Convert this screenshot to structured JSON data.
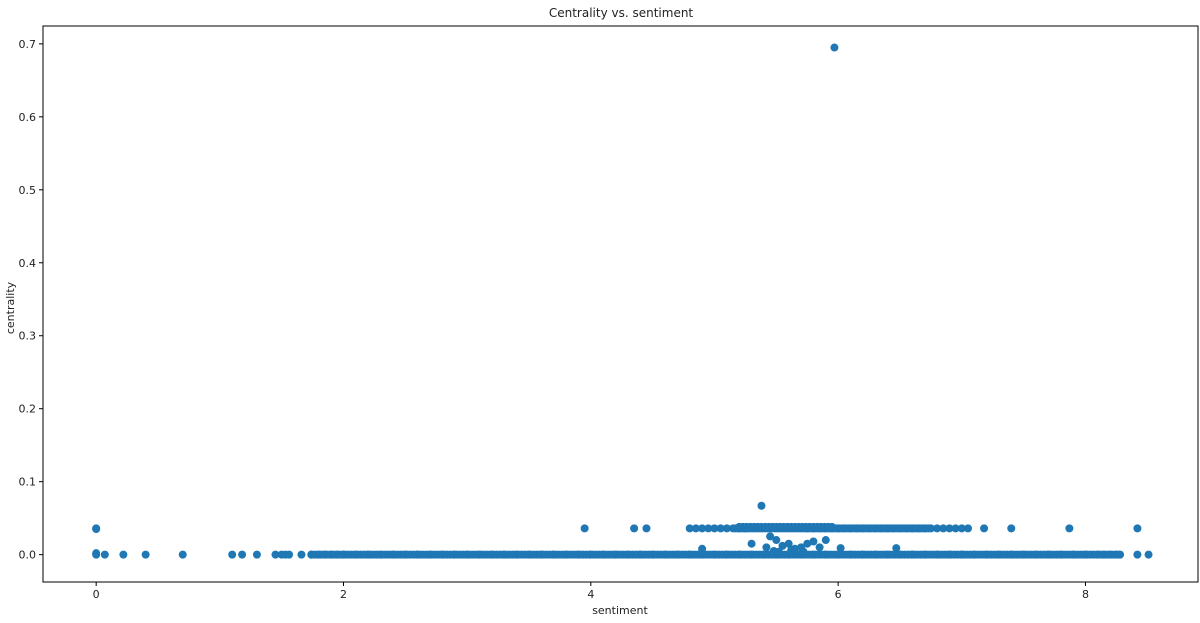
{
  "chart_data": {
    "type": "scatter",
    "title": "Centrality vs. sentiment",
    "xlabel": "sentiment",
    "ylabel": "centrality",
    "xlim": [
      -0.43,
      8.91
    ],
    "ylim": [
      -0.0375,
      0.7245
    ],
    "xticks": [
      0,
      2,
      4,
      6,
      8
    ],
    "yticks": [
      0.0,
      0.1,
      0.2,
      0.3,
      0.4,
      0.5,
      0.6,
      0.7
    ],
    "xtick_labels": [
      "0",
      "2",
      "4",
      "6",
      "8"
    ],
    "ytick_labels": [
      "0.0",
      "0.1",
      "0.2",
      "0.3",
      "0.4",
      "0.5",
      "0.6",
      "0.7"
    ],
    "grid": false,
    "legend": "none",
    "marker_color": "#1f77b4",
    "series": [
      {
        "x": [
          0.0,
          0.0,
          0.0,
          0.0,
          0.07,
          0.22,
          0.4,
          0.7,
          1.1,
          1.18,
          1.3,
          1.45,
          1.5,
          1.53,
          1.56,
          1.66,
          1.74,
          1.8,
          1.85,
          1.9,
          1.95,
          2.0,
          2.1,
          2.2,
          2.3,
          2.4,
          2.5,
          2.6,
          2.7,
          2.8,
          2.9,
          3.0,
          3.1,
          3.2,
          3.3,
          3.4,
          3.5,
          3.6,
          3.7,
          3.8,
          3.9,
          4.0,
          4.1,
          4.2,
          4.3,
          4.4,
          4.5,
          4.6,
          4.7,
          4.8,
          4.9,
          5.0,
          5.1,
          5.2,
          5.3,
          5.4,
          5.5,
          5.6,
          5.7,
          5.8,
          5.9,
          6.0,
          6.1,
          6.2,
          6.3,
          6.4,
          6.5,
          6.6,
          6.7,
          6.8,
          6.9,
          7.0,
          7.1,
          7.2,
          7.3,
          7.4,
          7.5,
          7.6,
          7.7,
          7.8,
          7.9,
          8.0,
          8.1,
          8.15,
          8.2,
          8.25,
          8.28,
          8.42,
          8.51,
          3.95,
          4.35,
          4.45,
          4.8,
          4.85,
          4.9,
          4.95,
          5.0,
          5.05,
          5.1,
          5.2,
          5.25,
          5.3,
          5.35,
          5.4,
          5.45,
          5.5,
          5.55,
          5.6,
          5.65,
          5.7,
          5.75,
          5.8,
          5.85,
          5.9,
          5.95,
          6.0,
          6.05,
          6.1,
          6.15,
          6.2,
          6.25,
          6.3,
          6.35,
          6.4,
          6.45,
          6.5,
          6.55,
          6.6,
          6.65,
          6.7,
          6.8,
          6.85,
          6.9,
          6.95,
          7.0,
          7.05,
          7.18,
          7.4,
          7.87,
          8.42,
          5.38,
          5.97,
          4.9,
          5.3,
          5.42,
          5.45,
          5.5,
          5.55,
          5.6,
          5.65,
          5.7,
          5.75,
          5.8,
          5.85,
          5.9,
          6.02,
          6.47,
          5.48,
          5.52,
          5.62,
          5.72
        ],
        "y": [
          0.036,
          0.035,
          0.002,
          0.0,
          0.0,
          0.0,
          0.0,
          0.0,
          0.0,
          0.0,
          0.0,
          0.0,
          0.0,
          0.0,
          0.0,
          0.0,
          0.0,
          0.0,
          0.0,
          0.0,
          0.0,
          0.0,
          0.0,
          0.0,
          0.0,
          0.0,
          0.0,
          0.0,
          0.0,
          0.0,
          0.0,
          0.0,
          0.0,
          0.0,
          0.0,
          0.0,
          0.0,
          0.0,
          0.0,
          0.0,
          0.0,
          0.0,
          0.0,
          0.0,
          0.0,
          0.0,
          0.0,
          0.0,
          0.0,
          0.0,
          0.0,
          0.0,
          0.0,
          0.0,
          0.0,
          0.0,
          0.0,
          0.0,
          0.0,
          0.0,
          0.0,
          0.0,
          0.0,
          0.0,
          0.0,
          0.0,
          0.0,
          0.0,
          0.0,
          0.0,
          0.0,
          0.0,
          0.0,
          0.0,
          0.0,
          0.0,
          0.0,
          0.0,
          0.0,
          0.0,
          0.0,
          0.0,
          0.0,
          0.0,
          0.0,
          0.0,
          0.0,
          0.0,
          0.0,
          0.036,
          0.036,
          0.036,
          0.036,
          0.036,
          0.036,
          0.036,
          0.036,
          0.036,
          0.036,
          0.036,
          0.036,
          0.037,
          0.037,
          0.037,
          0.037,
          0.037,
          0.037,
          0.037,
          0.037,
          0.037,
          0.036,
          0.036,
          0.036,
          0.036,
          0.036,
          0.036,
          0.036,
          0.036,
          0.036,
          0.036,
          0.036,
          0.036,
          0.036,
          0.036,
          0.036,
          0.036,
          0.036,
          0.036,
          0.036,
          0.036,
          0.036,
          0.036,
          0.036,
          0.036,
          0.036,
          0.036,
          0.036,
          0.036,
          0.036,
          0.036,
          0.067,
          0.695,
          0.008,
          0.015,
          0.01,
          0.025,
          0.02,
          0.012,
          0.015,
          0.008,
          0.01,
          0.015,
          0.018,
          0.01,
          0.02,
          0.009,
          0.009,
          0.005,
          0.004,
          0.006,
          0.004
        ]
      }
    ]
  }
}
